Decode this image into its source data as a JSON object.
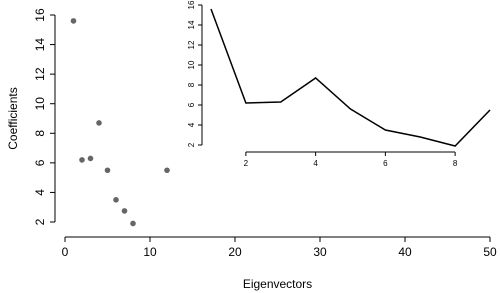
{
  "chart_data": [
    {
      "type": "scatter",
      "xlabel": "Eigenvectors",
      "ylabel": "Coefficients",
      "x": [
        1,
        2,
        3,
        4,
        5,
        6,
        7,
        8,
        12
      ],
      "values": [
        15.6,
        6.2,
        6.3,
        8.7,
        5.5,
        3.5,
        2.75,
        1.9,
        5.5
      ],
      "color": "#666666",
      "xlim": [
        0,
        50
      ],
      "ylim": [
        2,
        16
      ],
      "xticks": [
        0,
        10,
        20,
        30,
        40,
        50
      ],
      "yticks": [
        2,
        4,
        6,
        8,
        10,
        12,
        14,
        16
      ]
    },
    {
      "type": "line",
      "x": [
        1,
        2,
        3,
        4,
        5,
        6,
        7,
        8,
        9
      ],
      "values": [
        15.6,
        6.2,
        6.3,
        8.7,
        5.6,
        3.5,
        2.8,
        1.9,
        5.5
      ],
      "color": "#000000",
      "xlim": [
        1,
        9
      ],
      "ylim": [
        2,
        16
      ],
      "xticks": [
        2,
        4,
        6,
        8
      ],
      "yticks": [
        2,
        4,
        6,
        8,
        10,
        12,
        14,
        16
      ]
    }
  ]
}
